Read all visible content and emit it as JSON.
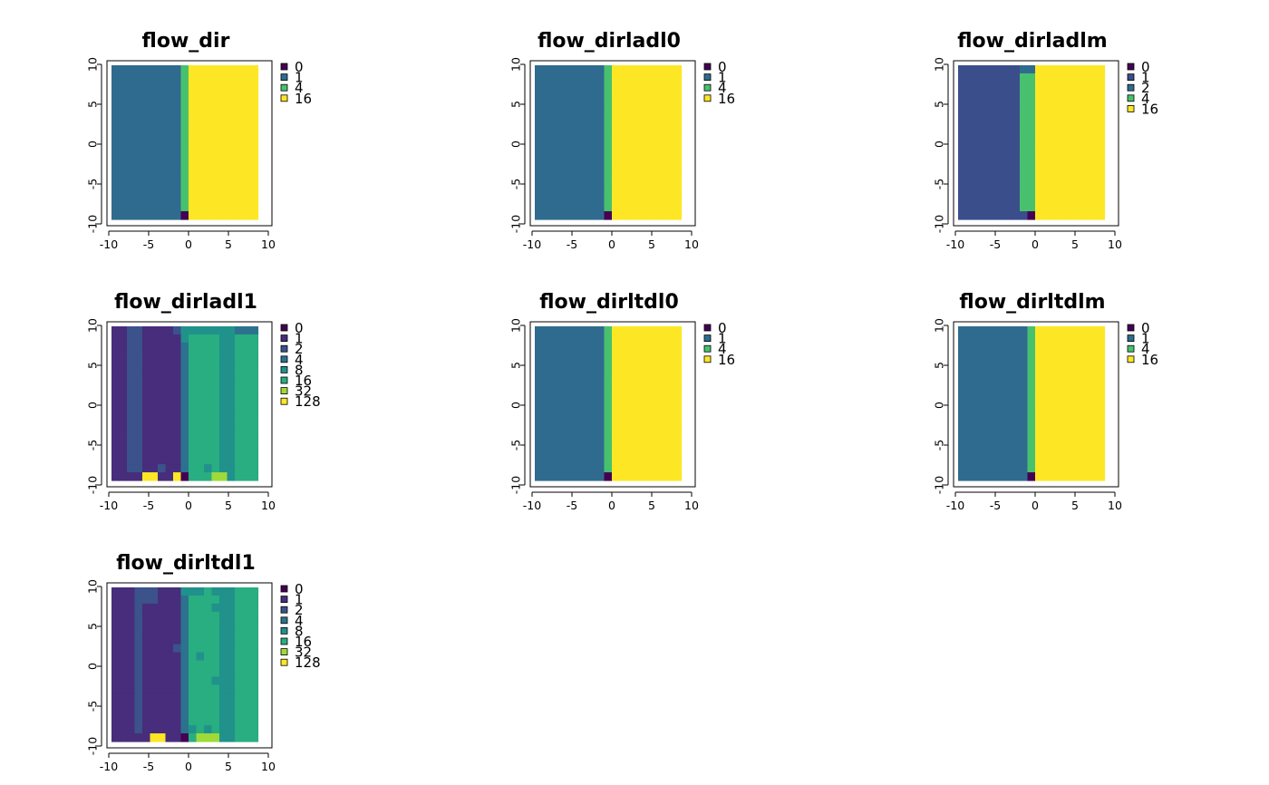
{
  "palette": {
    "0": "#440154",
    "1": "#2F6B8E",
    "1b": "#3A4E8B",
    "2": "#2F6B8E",
    "4": "#48C16E",
    "8": "#1F9F88",
    "16": "#FDE725",
    "32": "#A0DA39",
    "128": "#FDE725",
    "dark1": "#472D7B",
    "mid2": "#31688E"
  },
  "chart_data": [
    {
      "type": "heatmap",
      "title": "flow_dir",
      "xlim": [
        -10,
        10
      ],
      "ylim": [
        -10,
        10
      ],
      "x_ticks": [
        "-10",
        "-5",
        "0",
        "5",
        "10"
      ],
      "y_ticks": [
        "-10",
        "-5",
        "0",
        "5",
        "10"
      ],
      "legend": [
        {
          "label": "0",
          "color": "#440154"
        },
        {
          "label": "1",
          "color": "#2F6B8E"
        },
        {
          "label": "4",
          "color": "#48C16E"
        },
        {
          "label": "16",
          "color": "#FDE725"
        }
      ],
      "pattern": "simple"
    },
    {
      "type": "heatmap",
      "title": "flow_dirladl0",
      "xlim": [
        -10,
        10
      ],
      "ylim": [
        -10,
        10
      ],
      "x_ticks": [
        "-10",
        "-5",
        "0",
        "5",
        "10"
      ],
      "y_ticks": [
        "-10",
        "-5",
        "0",
        "5",
        "10"
      ],
      "legend": [
        {
          "label": "0",
          "color": "#440154"
        },
        {
          "label": "1",
          "color": "#2F6B8E"
        },
        {
          "label": "4",
          "color": "#48C16E"
        },
        {
          "label": "16",
          "color": "#FDE725"
        }
      ],
      "pattern": "simple"
    },
    {
      "type": "heatmap",
      "title": "flow_dirladlm",
      "xlim": [
        -10,
        10
      ],
      "ylim": [
        -10,
        10
      ],
      "x_ticks": [
        "-10",
        "-5",
        "0",
        "5",
        "10"
      ],
      "y_ticks": [
        "-10",
        "-5",
        "0",
        "5",
        "10"
      ],
      "legend": [
        {
          "label": "0",
          "color": "#440154"
        },
        {
          "label": "1",
          "color": "#3A4E8B"
        },
        {
          "label": "2",
          "color": "#2F6B8E"
        },
        {
          "label": "4",
          "color": "#48C16E"
        },
        {
          "label": "16",
          "color": "#FDE725"
        }
      ],
      "pattern": "ladlm"
    },
    {
      "type": "heatmap",
      "title": "flow_dirladl1",
      "xlim": [
        -10,
        10
      ],
      "ylim": [
        -10,
        10
      ],
      "x_ticks": [
        "-10",
        "-5",
        "0",
        "5",
        "10"
      ],
      "y_ticks": [
        "-10",
        "-5",
        "0",
        "5",
        "10"
      ],
      "legend": [
        {
          "label": "0",
          "color": "#440154"
        },
        {
          "label": "1",
          "color": "#472D7B"
        },
        {
          "label": "2",
          "color": "#3B528B"
        },
        {
          "label": "4",
          "color": "#2C728E"
        },
        {
          "label": "8",
          "color": "#21918C"
        },
        {
          "label": "16",
          "color": "#28AE80"
        },
        {
          "label": "32",
          "color": "#A0DA39"
        },
        {
          "label": "128",
          "color": "#FDE725"
        }
      ],
      "pattern": "complex_a"
    },
    {
      "type": "heatmap",
      "title": "flow_dirltdl0",
      "xlim": [
        -10,
        10
      ],
      "ylim": [
        -10,
        10
      ],
      "x_ticks": [
        "-10",
        "-5",
        "0",
        "5",
        "10"
      ],
      "y_ticks": [
        "-10",
        "-5",
        "0",
        "5",
        "10"
      ],
      "legend": [
        {
          "label": "0",
          "color": "#440154"
        },
        {
          "label": "1",
          "color": "#2F6B8E"
        },
        {
          "label": "4",
          "color": "#48C16E"
        },
        {
          "label": "16",
          "color": "#FDE725"
        }
      ],
      "pattern": "simple"
    },
    {
      "type": "heatmap",
      "title": "flow_dirltdlm",
      "xlim": [
        -10,
        10
      ],
      "ylim": [
        -10,
        10
      ],
      "x_ticks": [
        "-10",
        "-5",
        "0",
        "5",
        "10"
      ],
      "y_ticks": [
        "-10",
        "-5",
        "0",
        "5",
        "10"
      ],
      "legend": [
        {
          "label": "0",
          "color": "#440154"
        },
        {
          "label": "1",
          "color": "#2F6B8E"
        },
        {
          "label": "4",
          "color": "#48C16E"
        },
        {
          "label": "16",
          "color": "#FDE725"
        }
      ],
      "pattern": "simple"
    },
    {
      "type": "heatmap",
      "title": "flow_dirltdl1",
      "xlim": [
        -10,
        10
      ],
      "ylim": [
        -10,
        10
      ],
      "x_ticks": [
        "-10",
        "-5",
        "0",
        "5",
        "10"
      ],
      "y_ticks": [
        "-10",
        "-5",
        "0",
        "5",
        "10"
      ],
      "legend": [
        {
          "label": "0",
          "color": "#440154"
        },
        {
          "label": "1",
          "color": "#472D7B"
        },
        {
          "label": "2",
          "color": "#3B528B"
        },
        {
          "label": "4",
          "color": "#2C728E"
        },
        {
          "label": "8",
          "color": "#21918C"
        },
        {
          "label": "16",
          "color": "#28AE80"
        },
        {
          "label": "32",
          "color": "#A0DA39"
        },
        {
          "label": "128",
          "color": "#FDE725"
        }
      ],
      "pattern": "complex_b"
    }
  ]
}
